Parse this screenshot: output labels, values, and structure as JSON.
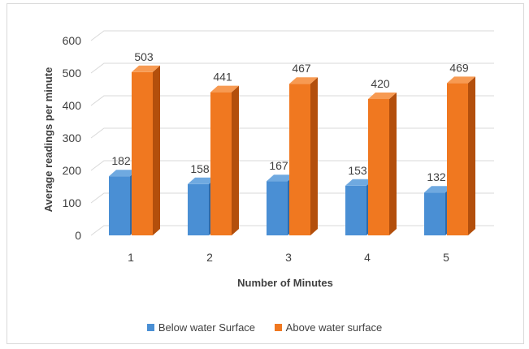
{
  "chart_data": {
    "type": "bar",
    "style": "3d-clustered-column",
    "categories": [
      "1",
      "2",
      "3",
      "4",
      "5"
    ],
    "series": [
      {
        "name": "Below water Surface",
        "values": [
          182,
          158,
          167,
          153,
          132
        ],
        "color": "#4a8fd4",
        "side_color": "#2f6aa8",
        "top_color": "#6fa9e0"
      },
      {
        "name": "Above water surface",
        "values": [
          503,
          441,
          467,
          420,
          469
        ],
        "color": "#f07820",
        "side_color": "#b34f0c",
        "top_color": "#f79a52"
      }
    ],
    "xlabel": "Number of Minutes",
    "ylabel": "Average readings per minute",
    "ylim": [
      0,
      600
    ],
    "yticks": [
      0,
      100,
      200,
      300,
      400,
      500,
      600
    ],
    "data_labels": true,
    "grid": true,
    "legend_position": "bottom"
  }
}
